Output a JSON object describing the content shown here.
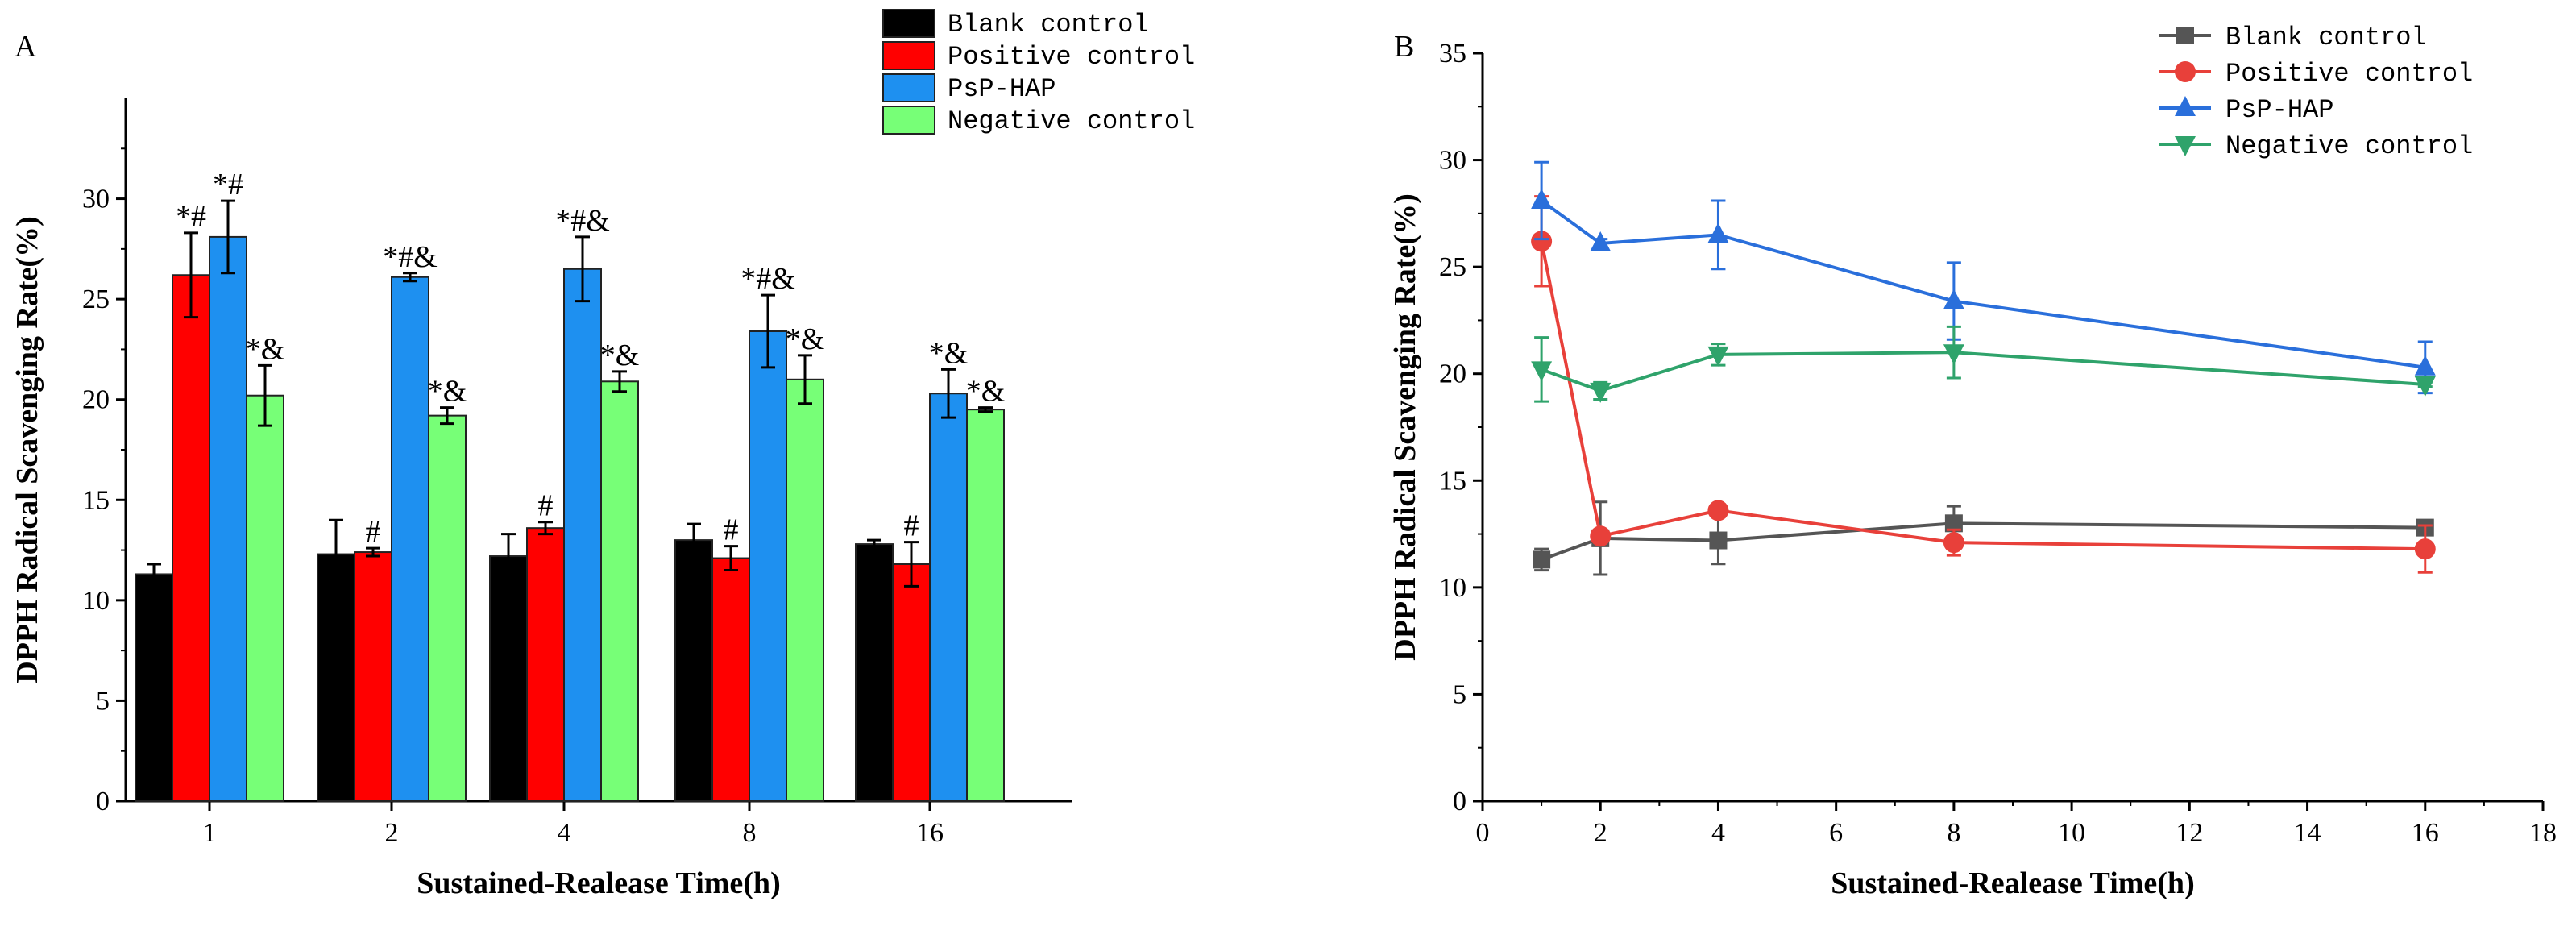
{
  "chart_data": [
    {
      "panel": "A",
      "type": "bar",
      "xlabel": "Sustained-Realease Time(h)",
      "ylabel": "DPPH Radical Scavenging Rate(%)",
      "ylim": [
        0,
        35
      ],
      "yticks": [
        0,
        5,
        10,
        15,
        20,
        25,
        30
      ],
      "categories": [
        "1",
        "2",
        "4",
        "8",
        "16"
      ],
      "legend_position": "top-right",
      "series": [
        {
          "name": "Blank control",
          "color": "#000000",
          "values": [
            11.3,
            12.3,
            12.2,
            13.0,
            12.8
          ],
          "errors": [
            0.5,
            1.7,
            1.1,
            0.8,
            0.2
          ],
          "annotations": [
            "",
            "",
            "",
            "",
            ""
          ]
        },
        {
          "name": "Positive control",
          "color": "#ff0000",
          "values": [
            26.2,
            12.4,
            13.6,
            12.1,
            11.8
          ],
          "errors": [
            2.1,
            0.2,
            0.3,
            0.6,
            1.1
          ],
          "annotations": [
            "*#",
            "#",
            "#",
            "#",
            "#"
          ]
        },
        {
          "name": "PsP-HAP",
          "color": "#1e90f0",
          "values": [
            28.1,
            26.1,
            26.5,
            23.4,
            20.3
          ],
          "errors": [
            1.8,
            0.2,
            1.6,
            1.8,
            1.2
          ],
          "annotations": [
            "*#",
            "*#&",
            "*#&",
            "*#&",
            "*&"
          ]
        },
        {
          "name": "Negative control",
          "color": "#77ff77",
          "values": [
            20.2,
            19.2,
            20.9,
            21.0,
            19.5
          ],
          "errors": [
            1.5,
            0.4,
            0.5,
            1.2,
            0.1
          ],
          "annotations": [
            "*&",
            "*&",
            "*&",
            "*&",
            "*&"
          ]
        }
      ]
    },
    {
      "panel": "B",
      "type": "line",
      "xlabel": "Sustained-Realease Time(h)",
      "ylabel": "DPPH Radical Scavenging Rate(%)",
      "xlim": [
        0,
        18
      ],
      "ylim": [
        0,
        35
      ],
      "xticks": [
        0,
        2,
        4,
        6,
        8,
        10,
        12,
        14,
        16,
        18
      ],
      "yticks": [
        0,
        5,
        10,
        15,
        20,
        25,
        30,
        35
      ],
      "x": [
        1,
        2,
        4,
        8,
        16
      ],
      "legend_position": "top-right",
      "series": [
        {
          "name": "Blank control",
          "color": "#555555",
          "marker": "square",
          "values": [
            11.3,
            12.3,
            12.2,
            13.0,
            12.8
          ],
          "errors": [
            0.5,
            1.7,
            1.1,
            0.8,
            0.2
          ]
        },
        {
          "name": "Positive control",
          "color": "#e8403a",
          "marker": "circle",
          "values": [
            26.2,
            12.4,
            13.6,
            12.1,
            11.8
          ],
          "errors": [
            2.1,
            0.2,
            0.3,
            0.6,
            1.1
          ]
        },
        {
          "name": "PsP-HAP",
          "color": "#2a6fdb",
          "marker": "triangle-up",
          "values": [
            28.1,
            26.1,
            26.5,
            23.4,
            20.3
          ],
          "errors": [
            1.8,
            0.2,
            1.6,
            1.8,
            1.2
          ]
        },
        {
          "name": "Negative control",
          "color": "#2fa36b",
          "marker": "triangle-down",
          "values": [
            20.2,
            19.2,
            20.9,
            21.0,
            19.5
          ],
          "errors": [
            1.5,
            0.4,
            0.5,
            1.2,
            0.1
          ]
        }
      ]
    }
  ]
}
